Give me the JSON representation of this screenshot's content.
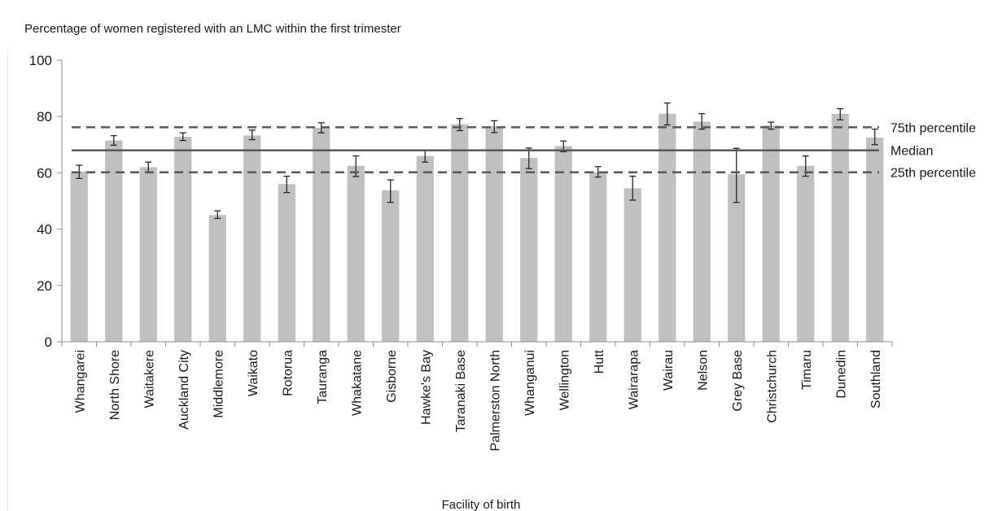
{
  "chart_data": {
    "type": "bar",
    "title": "Percentage of women registered with an LMC within the first trimester",
    "xlabel": "Facility of birth",
    "ylabel": "",
    "ylim": [
      0,
      100
    ],
    "yticks": [
      0,
      20,
      40,
      60,
      80,
      100
    ],
    "grid": false,
    "categories": [
      "Whangarei",
      "North Shore",
      "Waitakere",
      "Auckland City",
      "Middlemore",
      "Waikato",
      "Rotorua",
      "Tauranga",
      "Whakatane",
      "Gisborne",
      "Hawke's Bay",
      "Taranaki Base",
      "Palmerston North",
      "Whanganui",
      "Wellington",
      "Hutt",
      "Wairarapa",
      "Wairau",
      "Nelson",
      "Grey Base",
      "Christchurch",
      "Timaru",
      "Dunedin",
      "Southland"
    ],
    "values": [
      60.5,
      71.5,
      62,
      72.8,
      45,
      73.3,
      56,
      76,
      62.5,
      53.8,
      66,
      77.3,
      76.5,
      65.3,
      69.5,
      60.3,
      54.5,
      81,
      78.2,
      59.5,
      76.8,
      62.5,
      81,
      72.5
    ],
    "error_low": [
      58,
      69.8,
      60.3,
      71.5,
      43.8,
      71.8,
      53,
      74.2,
      58.7,
      49.5,
      63.8,
      75,
      74.3,
      61.5,
      67.5,
      58.5,
      50.3,
      77,
      75.5,
      49.5,
      75.5,
      58.8,
      78.8,
      70
    ],
    "error_high": [
      62.7,
      73.2,
      63.8,
      74.2,
      46.5,
      75.2,
      58.8,
      77.8,
      66,
      57.5,
      68,
      79.3,
      78.5,
      68.8,
      71.3,
      62.2,
      58.8,
      84.8,
      81,
      68.7,
      78,
      66,
      82.8,
      75.5
    ],
    "reference_lines": [
      {
        "name": "75th percentile",
        "value": 76.2,
        "style": "dashed"
      },
      {
        "name": "Median",
        "value": 68,
        "style": "solid"
      },
      {
        "name": "25th percentile",
        "value": 60.2,
        "style": "dashed"
      }
    ],
    "colors": {
      "bar": "#c0c0c0",
      "line": "#595959",
      "axis": "#8c8c8c",
      "error": "#262626"
    }
  }
}
